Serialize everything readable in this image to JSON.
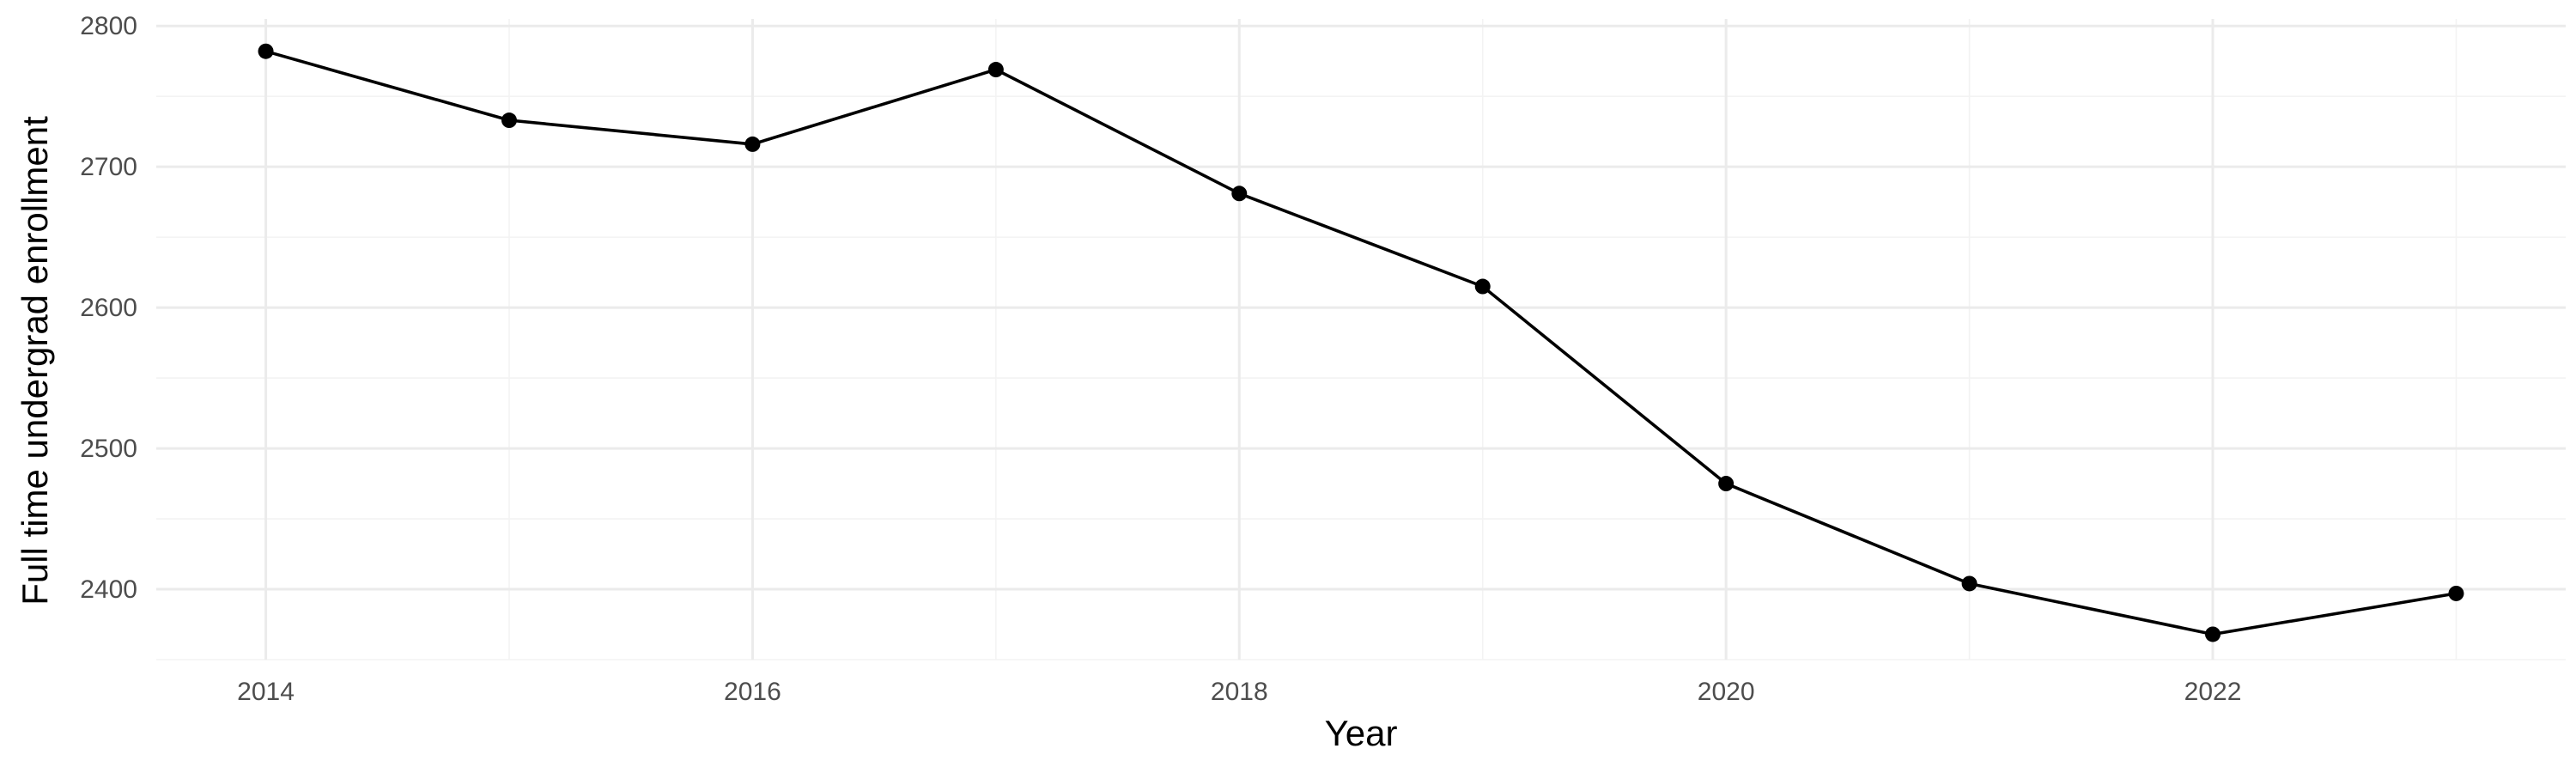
{
  "chart_data": {
    "type": "line",
    "xlabel": "Year",
    "ylabel": "Full time undergrad enrollment",
    "x": [
      2014,
      2015,
      2016,
      2017,
      2018,
      2019,
      2020,
      2021,
      2022,
      2023
    ],
    "series": [
      {
        "values": [
          2782,
          2733,
          2716,
          2769,
          2681,
          2615,
          2475,
          2404,
          2368,
          2397
        ]
      }
    ],
    "xlim": [
      2013.55,
      2023.45
    ],
    "ylim": [
      2350,
      2800
    ],
    "x_ticks": [
      2014,
      2016,
      2018,
      2020,
      2022
    ],
    "x_tick_labels": [
      "2014",
      "2016",
      "2018",
      "2020",
      "2022"
    ],
    "y_ticks": [
      2400,
      2500,
      2600,
      2700,
      2800
    ],
    "y_tick_labels": [
      "2400",
      "2500",
      "2600",
      "2700",
      "2800"
    ],
    "grid": true,
    "line_color": "#000000",
    "point_color": "#000000"
  }
}
